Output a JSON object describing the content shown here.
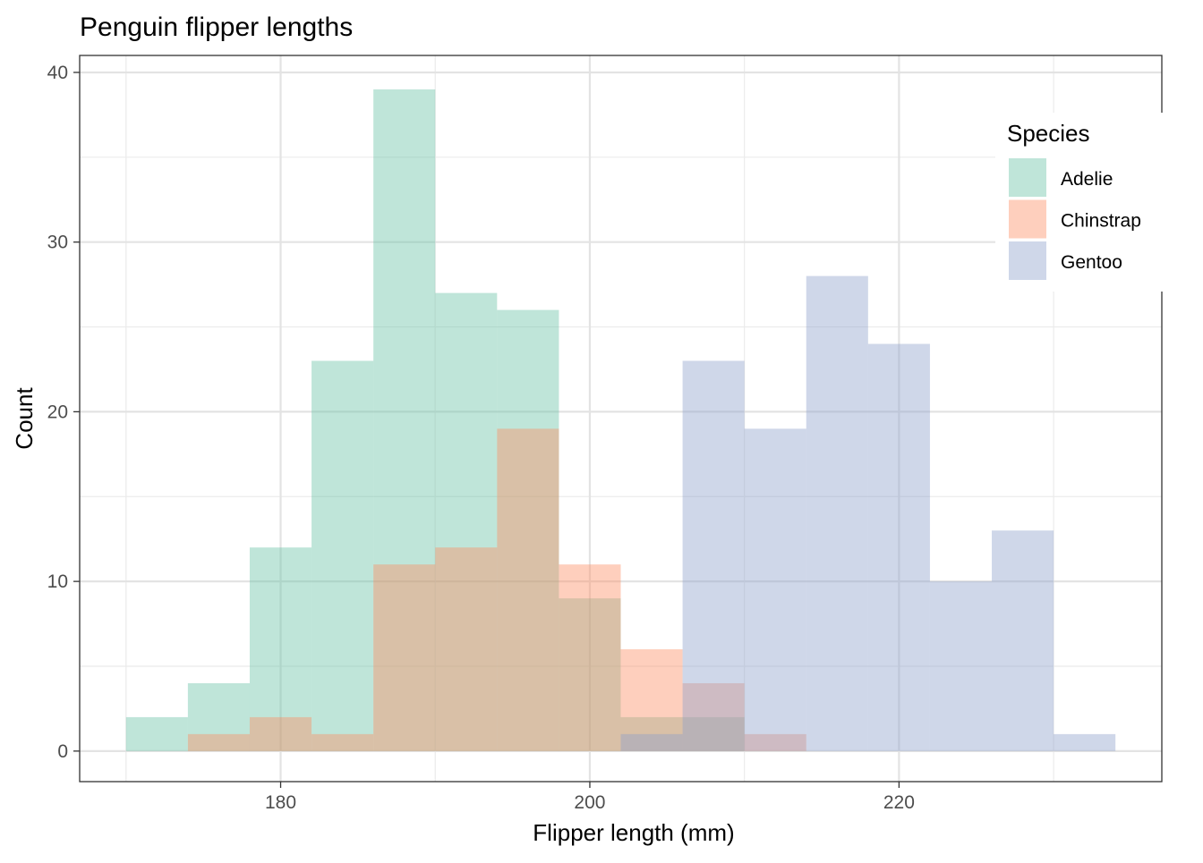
{
  "chart_data": {
    "type": "bar",
    "subtype": "histogram-overlapping",
    "title": "Penguin flipper lengths",
    "xlabel": "Flipper length (mm)",
    "ylabel": "Count",
    "xlim": [
      167,
      237
    ],
    "ylim": [
      -1.8,
      41
    ],
    "xticks": [
      180,
      200,
      220
    ],
    "yticks": [
      0,
      10,
      20,
      30,
      40
    ],
    "grid": true,
    "bin_width": 4,
    "legend": {
      "title": "Species",
      "placement": "top-right-inside"
    },
    "series": [
      {
        "name": "Adelie",
        "color": "#66c2a5",
        "bins": [
          {
            "x0": 170,
            "x1": 174,
            "count": 2
          },
          {
            "x0": 174,
            "x1": 178,
            "count": 4
          },
          {
            "x0": 178,
            "x1": 182,
            "count": 12
          },
          {
            "x0": 182,
            "x1": 186,
            "count": 23
          },
          {
            "x0": 186,
            "x1": 190,
            "count": 39
          },
          {
            "x0": 190,
            "x1": 194,
            "count": 27
          },
          {
            "x0": 194,
            "x1": 198,
            "count": 26
          },
          {
            "x0": 198,
            "x1": 202,
            "count": 9
          },
          {
            "x0": 202,
            "x1": 206,
            "count": 2
          },
          {
            "x0": 206,
            "x1": 210,
            "count": 2
          }
        ]
      },
      {
        "name": "Chinstrap",
        "color": "#fc8d62",
        "bins": [
          {
            "x0": 174,
            "x1": 178,
            "count": 1
          },
          {
            "x0": 178,
            "x1": 182,
            "count": 2
          },
          {
            "x0": 182,
            "x1": 186,
            "count": 1
          },
          {
            "x0": 186,
            "x1": 190,
            "count": 11
          },
          {
            "x0": 190,
            "x1": 194,
            "count": 12
          },
          {
            "x0": 194,
            "x1": 198,
            "count": 19
          },
          {
            "x0": 198,
            "x1": 202,
            "count": 11
          },
          {
            "x0": 202,
            "x1": 206,
            "count": 6
          },
          {
            "x0": 206,
            "x1": 210,
            "count": 4
          },
          {
            "x0": 210,
            "x1": 214,
            "count": 1
          }
        ]
      },
      {
        "name": "Gentoo",
        "color": "#8da0cb",
        "bins": [
          {
            "x0": 202,
            "x1": 206,
            "count": 1
          },
          {
            "x0": 206,
            "x1": 210,
            "count": 23
          },
          {
            "x0": 210,
            "x1": 214,
            "count": 19
          },
          {
            "x0": 214,
            "x1": 218,
            "count": 28
          },
          {
            "x0": 218,
            "x1": 222,
            "count": 24
          },
          {
            "x0": 222,
            "x1": 226,
            "count": 10
          },
          {
            "x0": 226,
            "x1": 230,
            "count": 13
          },
          {
            "x0": 230,
            "x1": 234,
            "count": 1
          }
        ]
      }
    ]
  }
}
